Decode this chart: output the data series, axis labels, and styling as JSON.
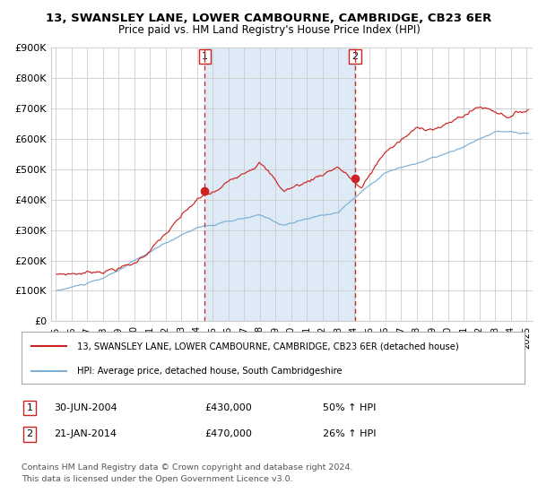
{
  "title": "13, SWANSLEY LANE, LOWER CAMBOURNE, CAMBRIDGE, CB23 6ER",
  "subtitle": "Price paid vs. HM Land Registry's House Price Index (HPI)",
  "legend_line1": "13, SWANSLEY LANE, LOWER CAMBOURNE, CAMBRIDGE, CB23 6ER (detached house)",
  "legend_line2": "HPI: Average price, detached house, South Cambridgeshire",
  "sale1_date": "30-JUN-2004",
  "sale1_price": "£430,000",
  "sale1_hpi": "50% ↑ HPI",
  "sale2_date": "21-JAN-2014",
  "sale2_price": "£470,000",
  "sale2_hpi": "26% ↑ HPI",
  "footnote1": "Contains HM Land Registry data © Crown copyright and database right 2024.",
  "footnote2": "This data is licensed under the Open Government Licence v3.0.",
  "ylim": [
    0,
    900000
  ],
  "yticks": [
    0,
    100000,
    200000,
    300000,
    400000,
    500000,
    600000,
    700000,
    800000,
    900000
  ],
  "ytick_labels": [
    "£0",
    "£100K",
    "£200K",
    "£300K",
    "£400K",
    "£500K",
    "£600K",
    "£700K",
    "£800K",
    "£900K"
  ],
  "hpi_color": "#7bafd4",
  "price_color": "#cc2222",
  "background_color": "#ffffff",
  "shaded_region_color": "#deeaf5",
  "grid_color": "#cccccc",
  "sale1_x": 2004.5,
  "sale2_x": 2014.08,
  "sale1_y": 430000,
  "sale2_y": 470000,
  "xlim_left": 1994.7,
  "xlim_right": 2025.4
}
